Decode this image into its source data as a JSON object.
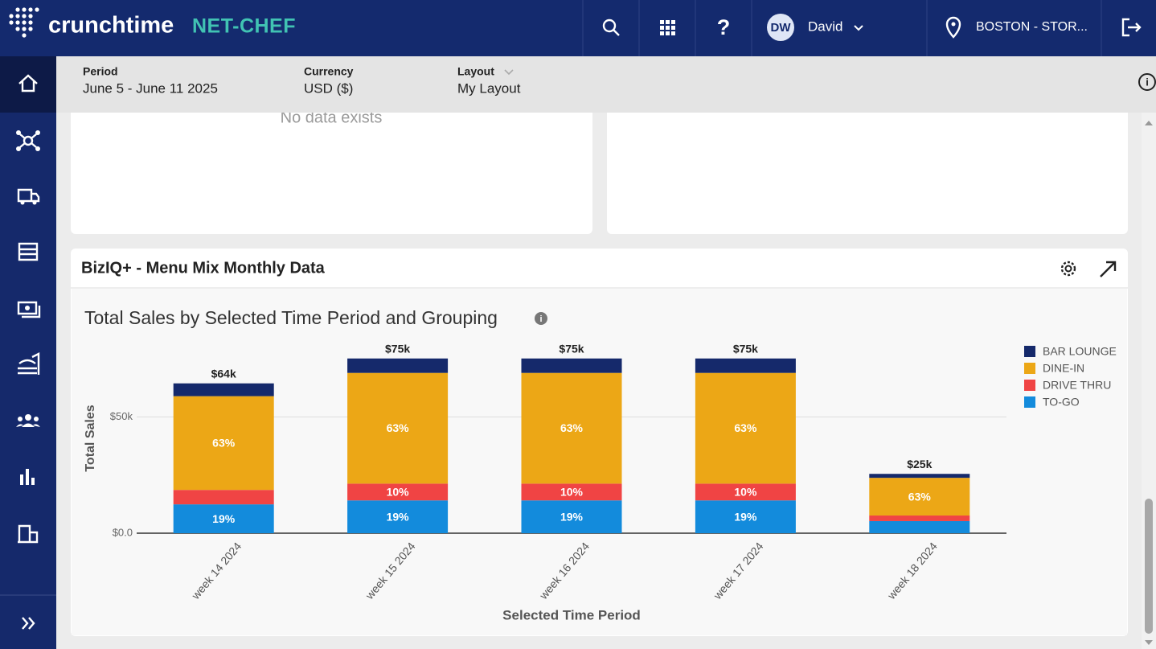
{
  "header": {
    "logo": "crunchtime",
    "product": "NET-CHEF",
    "user_initials": "DW",
    "user_name": "David",
    "location": "BOSTON - STOR..."
  },
  "filters": [
    {
      "label": "Period",
      "value": "June 5 - June 11 2025"
    },
    {
      "label": "Currency",
      "value": "USD ($)"
    },
    {
      "label": "Layout",
      "value": "My Layout"
    }
  ],
  "empty_panel": {
    "message": "No data exists"
  },
  "widget": {
    "title": "BizIQ+ - Menu Mix Monthly Data"
  },
  "chart_data": {
    "type": "bar",
    "stacked": true,
    "title": "Total Sales by Selected Time Period and Grouping",
    "x_label": "Selected Time Period",
    "y_label": "Total Sales",
    "categories": [
      "week 14 2024",
      "week 15 2024",
      "week 16 2024",
      "week 17 2024",
      "week 18 2024"
    ],
    "series": [
      {
        "name": "BAR LOUNGE",
        "color": "#15296b",
        "values": [
          5500,
          6200,
          6200,
          6200,
          1700
        ],
        "share_labels": [
          null,
          null,
          null,
          null,
          null
        ]
      },
      {
        "name": "DINE-IN",
        "color": "#eca716",
        "values": [
          40300,
          47600,
          47600,
          47600,
          16200
        ],
        "share_labels": [
          "63%",
          "63%",
          "63%",
          "63%",
          "63%"
        ]
      },
      {
        "name": "DRIVE THRU",
        "color": "#f04444",
        "values": [
          6200,
          7200,
          7200,
          7200,
          2400
        ],
        "share_labels": [
          null,
          "10%",
          "10%",
          "10%",
          null
        ]
      },
      {
        "name": "TO-GO",
        "color": "#138bdc",
        "values": [
          12400,
          14100,
          14100,
          14100,
          5200
        ],
        "share_labels": [
          "19%",
          "19%",
          "19%",
          "19%",
          null
        ]
      }
    ],
    "total_labels": [
      "$64k",
      "$75k",
      "$75k",
      "$75k",
      "$25k"
    ],
    "ylim": [
      0,
      84000
    ],
    "yticks": [
      {
        "value": 0,
        "label": "$0.0"
      },
      {
        "value": 50000,
        "label": "$50k"
      }
    ],
    "grid": true,
    "legend": "right"
  }
}
